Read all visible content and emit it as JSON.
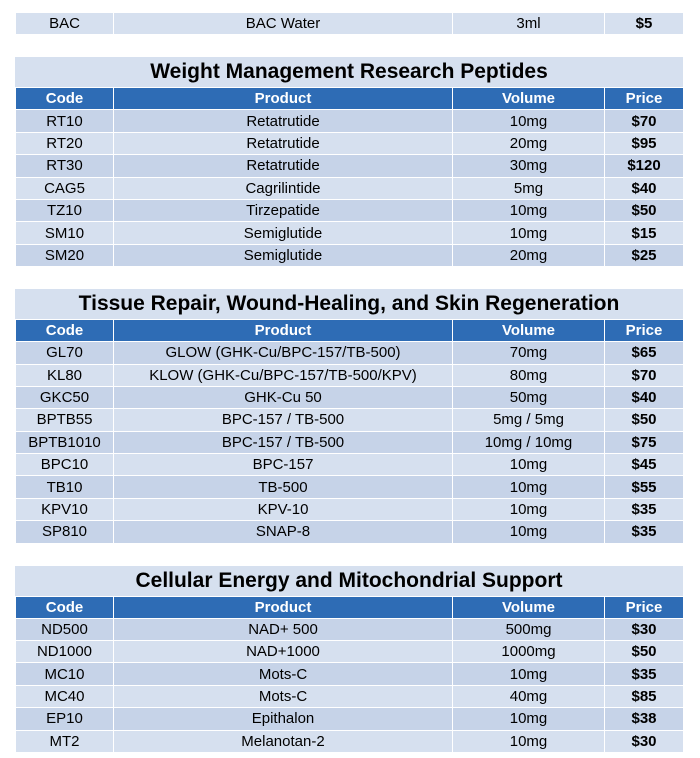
{
  "bac": {
    "code": "BAC",
    "product": "BAC Water",
    "volume": "3ml",
    "price": "$5"
  },
  "headers": {
    "code": "Code",
    "product": "Product",
    "volume": "Volume",
    "price": "Price"
  },
  "sections": [
    {
      "title": "Weight Management Research Peptides",
      "rows": [
        {
          "code": "RT10",
          "product": "Retatrutide",
          "volume": "10mg",
          "price": "$70"
        },
        {
          "code": "RT20",
          "product": "Retatrutide",
          "volume": "20mg",
          "price": "$95"
        },
        {
          "code": "RT30",
          "product": "Retatrutide",
          "volume": "30mg",
          "price": "$120"
        },
        {
          "code": "CAG5",
          "product": "Cagrilintide",
          "volume": "5mg",
          "price": "$40"
        },
        {
          "code": "TZ10",
          "product": "Tirzepatide",
          "volume": "10mg",
          "price": "$50"
        },
        {
          "code": "SM10",
          "product": "Semiglutide",
          "volume": "10mg",
          "price": "$15"
        },
        {
          "code": "SM20",
          "product": "Semiglutide",
          "volume": "20mg",
          "price": "$25"
        }
      ]
    },
    {
      "title": "Tissue Repair, Wound-Healing, and Skin Regeneration",
      "rows": [
        {
          "code": "GL70",
          "product": "GLOW (GHK-Cu/BPC-157/TB-500)",
          "volume": "70mg",
          "price": "$65"
        },
        {
          "code": "KL80",
          "product": "KLOW (GHK-Cu/BPC-157/TB-500/KPV)",
          "volume": "80mg",
          "price": "$70"
        },
        {
          "code": "GKC50",
          "product": "GHK-Cu 50",
          "volume": "50mg",
          "price": "$40"
        },
        {
          "code": "BPTB55",
          "product": "BPC-157 / TB-500",
          "volume": "5mg / 5mg",
          "price": "$50"
        },
        {
          "code": "BPTB1010",
          "product": "BPC-157 / TB-500",
          "volume": "10mg / 10mg",
          "price": "$75"
        },
        {
          "code": "BPC10",
          "product": "BPC-157",
          "volume": "10mg",
          "price": "$45"
        },
        {
          "code": "TB10",
          "product": "TB-500",
          "volume": "10mg",
          "price": "$55"
        },
        {
          "code": "KPV10",
          "product": "KPV-10",
          "volume": "10mg",
          "price": "$35"
        },
        {
          "code": "SP810",
          "product": "SNAP-8",
          "volume": "10mg",
          "price": "$35"
        }
      ]
    },
    {
      "title": "Cellular Energy and Mitochondrial Support",
      "rows": [
        {
          "code": "ND500",
          "product": "NAD+ 500",
          "volume": "500mg",
          "price": "$30"
        },
        {
          "code": "ND1000",
          "product": "NAD+1000",
          "volume": "1000mg",
          "price": "$50"
        },
        {
          "code": "MC10",
          "product": "Mots-C",
          "volume": "10mg",
          "price": "$35"
        },
        {
          "code": "MC40",
          "product": "Mots-C",
          "volume": "40mg",
          "price": "$85"
        },
        {
          "code": "EP10",
          "product": "Epithalon",
          "volume": "10mg",
          "price": "$38"
        },
        {
          "code": "MT2",
          "product": "Melanotan-2",
          "volume": "10mg",
          "price": "$30"
        }
      ]
    }
  ]
}
